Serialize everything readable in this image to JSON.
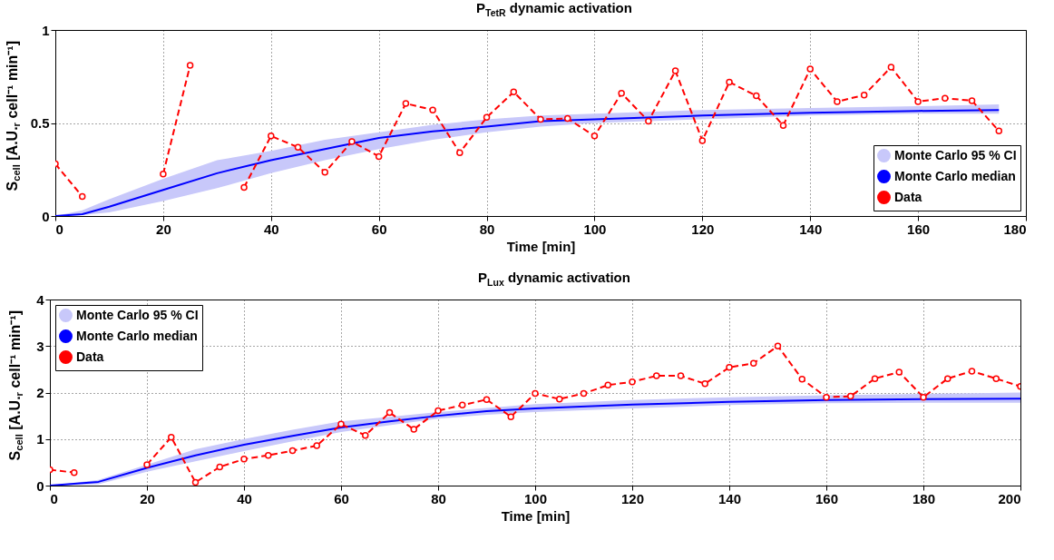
{
  "chart_data": [
    {
      "type": "line",
      "title": "P$_{TetR}$ dynamic activation",
      "xlabel": "Time [min]",
      "ylabel": "S$_{cell}$ [A.U.$_{r}$ cell⁻¹ min⁻¹]",
      "xlim": [
        0,
        180
      ],
      "xticks": [
        0,
        20,
        40,
        60,
        80,
        100,
        120,
        140,
        160,
        180
      ],
      "ylim": [
        0,
        1
      ],
      "yticks": [
        0,
        0.5,
        1
      ],
      "grid": true,
      "legend": "bottom right",
      "series": [
        {
          "name": "Monte Carlo 95 % CI",
          "type": "area",
          "color": "#c8c8fa"
        },
        {
          "name": "Monte Carlo median",
          "type": "line",
          "color": "#0000ff",
          "line_style": "solid",
          "x": [
            0,
            5,
            10,
            20,
            30,
            40,
            50,
            60,
            70,
            80,
            90,
            100,
            120,
            140,
            160,
            175
          ],
          "values": [
            0,
            0.01,
            0.05,
            0.14,
            0.23,
            0.3,
            0.36,
            0.42,
            0.455,
            0.48,
            0.51,
            0.52,
            0.54,
            0.555,
            0.565,
            0.57
          ],
          "lower": [
            0,
            0.005,
            0.02,
            0.08,
            0.15,
            0.23,
            0.3,
            0.36,
            0.41,
            0.45,
            0.48,
            0.5,
            0.52,
            0.54,
            0.55,
            0.55
          ],
          "upper": [
            0,
            0.03,
            0.09,
            0.2,
            0.3,
            0.35,
            0.41,
            0.45,
            0.49,
            0.52,
            0.54,
            0.55,
            0.57,
            0.58,
            0.59,
            0.6
          ]
        },
        {
          "name": "Data",
          "type": "line",
          "color": "#ff0000",
          "marker": "circle",
          "line_style": "dashed",
          "x": [
            0,
            5,
            10,
            15,
            20,
            25,
            30,
            35,
            40,
            45,
            50,
            55,
            60,
            65,
            70,
            75,
            80,
            85,
            90,
            95,
            100,
            105,
            110,
            115,
            120,
            125,
            130,
            135,
            140,
            145,
            150,
            155,
            160,
            165,
            170,
            175
          ],
          "values": [
            0.28,
            0.105,
            null,
            null,
            0.226,
            0.81,
            null,
            0.154,
            0.43,
            0.37,
            0.235,
            0.4,
            0.32,
            0.605,
            0.57,
            0.34,
            0.53,
            0.667,
            0.52,
            0.524,
            0.43,
            0.66,
            0.51,
            0.78,
            0.405,
            0.72,
            0.646,
            0.487,
            0.79,
            0.615,
            0.65,
            0.8,
            0.615,
            0.633,
            0.62,
            0.457
          ]
        }
      ]
    },
    {
      "type": "line",
      "title": "P$_{Lux}$ dynamic activation",
      "xlabel": "Time [min]",
      "ylabel": "S$_{cell}$ [A.U.$_{r}$ cell⁻¹ min⁻¹]",
      "xlim": [
        0,
        200
      ],
      "xticks": [
        0,
        20,
        40,
        60,
        80,
        100,
        120,
        140,
        160,
        180,
        200
      ],
      "ylim": [
        0,
        4
      ],
      "yticks": [
        0,
        1,
        2,
        3,
        4
      ],
      "grid": true,
      "legend": "top left",
      "series": [
        {
          "name": "Monte Carlo 95 % CI",
          "type": "area",
          "color": "#c8c8fa"
        },
        {
          "name": "Monte Carlo median",
          "type": "line",
          "color": "#0000ff",
          "line_style": "solid",
          "x": [
            0,
            10,
            20,
            30,
            40,
            50,
            60,
            70,
            80,
            90,
            100,
            120,
            140,
            160,
            180,
            200
          ],
          "values": [
            0,
            0.08,
            0.38,
            0.65,
            0.88,
            1.07,
            1.25,
            1.38,
            1.5,
            1.6,
            1.66,
            1.74,
            1.8,
            1.84,
            1.86,
            1.87
          ],
          "lower": [
            0,
            0.03,
            0.3,
            0.52,
            0.74,
            0.95,
            1.15,
            1.3,
            1.44,
            1.52,
            1.58,
            1.66,
            1.73,
            1.77,
            1.78,
            1.78
          ],
          "upper": [
            0,
            0.12,
            0.45,
            0.78,
            1.0,
            1.2,
            1.38,
            1.48,
            1.58,
            1.67,
            1.75,
            1.84,
            1.9,
            1.94,
            1.97,
            2.0
          ]
        },
        {
          "name": "Data",
          "type": "line",
          "color": "#ff0000",
          "marker": "circle",
          "line_style": "dashed",
          "x": [
            0,
            5,
            10,
            15,
            20,
            25,
            30,
            35,
            40,
            45,
            50,
            55,
            60,
            65,
            70,
            75,
            80,
            85,
            90,
            95,
            100,
            105,
            110,
            115,
            120,
            125,
            130,
            135,
            140,
            145,
            150,
            155,
            160,
            165,
            170,
            175,
            180,
            185,
            190,
            195,
            200
          ],
          "values": [
            0.34,
            0.28,
            null,
            null,
            0.45,
            1.04,
            0.07,
            0.4,
            0.57,
            0.65,
            0.75,
            0.86,
            1.32,
            1.08,
            1.57,
            1.21,
            1.61,
            1.73,
            1.85,
            1.48,
            1.98,
            1.86,
            1.98,
            2.16,
            2.23,
            2.36,
            2.36,
            2.19,
            2.54,
            2.63,
            3.0,
            2.29,
            1.9,
            1.92,
            2.3,
            2.44,
            1.9,
            2.3,
            2.46,
            2.3,
            2.13
          ]
        }
      ]
    }
  ]
}
